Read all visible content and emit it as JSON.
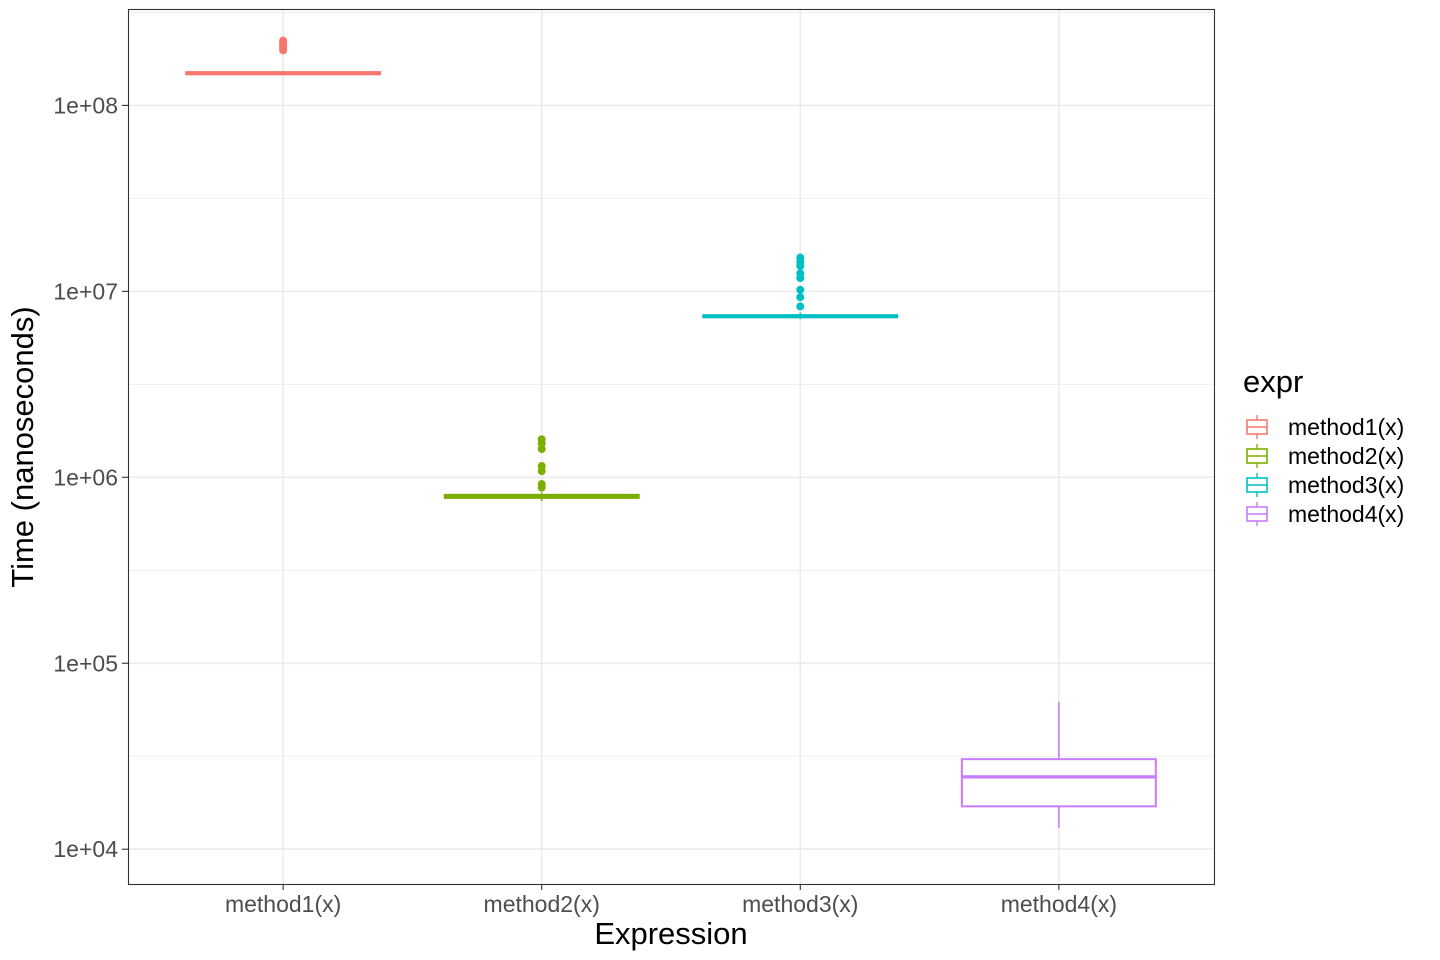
{
  "chart_data": {
    "type": "box",
    "xlabel": "Expression",
    "ylabel": "Time (nanoseconds)",
    "y_scale": "log10",
    "ylim": [
      6500,
      330000000
    ],
    "y_ticks": [
      10000,
      100000,
      1000000,
      10000000,
      100000000
    ],
    "y_tick_labels": [
      "1e+04",
      "1e+05",
      "1e+06",
      "1e+07",
      "1e+08"
    ],
    "categories": [
      "method1(x)",
      "method2(x)",
      "method3(x)",
      "method4(x)"
    ],
    "grid": true,
    "legend": {
      "title": "expr",
      "placement": "right",
      "entries": [
        "method1(x)",
        "method2(x)",
        "method3(x)",
        "method4(x)"
      ]
    },
    "series": [
      {
        "category": "method1(x)",
        "color": "#F8766D",
        "min": 145000000,
        "q1": 147000000,
        "median": 149000000,
        "q3": 151000000,
        "max": 153000000,
        "outliers": [
          198000000,
          203000000,
          208000000,
          213000000,
          218000000,
          223000000
        ]
      },
      {
        "category": "method2(x)",
        "color": "#7CAE00",
        "min": 745000.0,
        "q1": 775000,
        "median": 790000,
        "q3": 805000,
        "max": 830000,
        "outliers": [
          880000,
          920000,
          1080000,
          1150000,
          1420000,
          1520000,
          1600000
        ]
      },
      {
        "category": "method3(x)",
        "color": "#00BFC4",
        "min": 7100000,
        "q1": 7250000,
        "median": 7350000,
        "q3": 7450000,
        "max": 7700000,
        "outliers": [
          8300000,
          9300000,
          10200000,
          11800000,
          12500000,
          13700000,
          14400000,
          15200000
        ]
      },
      {
        "category": "method4(x)",
        "color": "#C77CFF",
        "min": 13000,
        "q1": 17000,
        "median": 24500,
        "q3": 30500,
        "max": 62000,
        "outliers": []
      }
    ]
  }
}
